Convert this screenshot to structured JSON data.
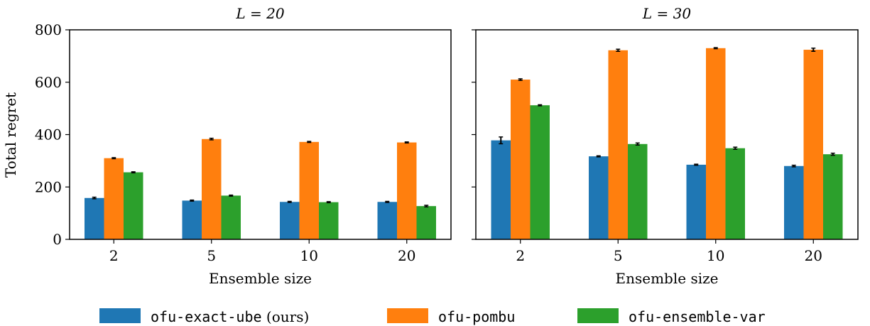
{
  "chart_data": {
    "type": "bar",
    "ylabel": "Total regret",
    "xlabel": "Ensemble size",
    "ylim": [
      0,
      800
    ],
    "yticks": [
      0,
      200,
      400,
      600,
      800
    ],
    "categories": [
      "2",
      "5",
      "10",
      "20"
    ],
    "legend": {
      "placement": "bottom-center",
      "entries": [
        {
          "name": "ofu-exact-ube",
          "suffix": "(ours)",
          "color": "#1f77b4"
        },
        {
          "name": "ofu-pombu",
          "suffix": "",
          "color": "#ff7f0e"
        },
        {
          "name": "ofu-ensemble-var",
          "suffix": "",
          "color": "#2ca02c"
        }
      ]
    },
    "panels": [
      {
        "title": "L = 20",
        "series": [
          {
            "name": "ofu-exact-ube",
            "color": "#1f77b4",
            "values": [
              158,
              148,
              143,
              143
            ],
            "errors": [
              3,
              2,
              2,
              2
            ]
          },
          {
            "name": "ofu-pombu",
            "color": "#ff7f0e",
            "values": [
              310,
              383,
              372,
              370
            ],
            "errors": [
              2,
              3,
              2,
              2
            ]
          },
          {
            "name": "ofu-ensemble-var",
            "color": "#2ca02c",
            "values": [
              256,
              167,
              142,
              127
            ],
            "errors": [
              2,
              2,
              2,
              3
            ]
          }
        ]
      },
      {
        "title": "L = 30",
        "series": [
          {
            "name": "ofu-exact-ube",
            "color": "#1f77b4",
            "values": [
              378,
              317,
              285,
              280
            ],
            "errors": [
              13,
              2,
              2,
              3
            ]
          },
          {
            "name": "ofu-pombu",
            "color": "#ff7f0e",
            "values": [
              610,
              722,
              730,
              724
            ],
            "errors": [
              3,
              4,
              2,
              6
            ]
          },
          {
            "name": "ofu-ensemble-var",
            "color": "#2ca02c",
            "values": [
              512,
              364,
              348,
              325
            ],
            "errors": [
              2,
              4,
              4,
              4
            ]
          }
        ]
      }
    ]
  }
}
